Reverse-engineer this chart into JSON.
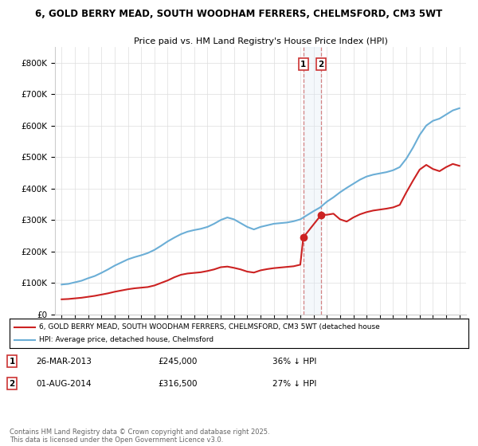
{
  "title1": "6, GOLD BERRY MEAD, SOUTH WOODHAM FERRERS, CHELMSFORD, CM3 5WT",
  "title2": "Price paid vs. HM Land Registry's House Price Index (HPI)",
  "legend_label1": "6, GOLD BERRY MEAD, SOUTH WOODHAM FERRERS, CHELMSFORD, CM3 5WT (detached house",
  "legend_label2": "HPI: Average price, detached house, Chelmsford",
  "annotation1_date": "26-MAR-2013",
  "annotation1_price": "£245,000",
  "annotation1_hpi": "36% ↓ HPI",
  "annotation2_date": "01-AUG-2014",
  "annotation2_price": "£316,500",
  "annotation2_hpi": "27% ↓ HPI",
  "footer": "Contains HM Land Registry data © Crown copyright and database right 2025.\nThis data is licensed under the Open Government Licence v3.0.",
  "hpi_color": "#6baed6",
  "price_color": "#cc2222",
  "annotation_fill_color": "#dce9f5",
  "ylim": [
    0,
    850000
  ],
  "yticks": [
    0,
    100000,
    200000,
    300000,
    400000,
    500000,
    600000,
    700000,
    800000
  ],
  "sale1_year": 2013.23,
  "sale1_price": 245000,
  "sale2_year": 2014.58,
  "sale2_price": 316500,
  "hpi_x": [
    1995,
    1995.5,
    1996,
    1996.5,
    1997,
    1997.5,
    1998,
    1998.5,
    1999,
    1999.5,
    2000,
    2000.5,
    2001,
    2001.5,
    2002,
    2002.5,
    2003,
    2003.5,
    2004,
    2004.5,
    2005,
    2005.5,
    2006,
    2006.5,
    2007,
    2007.5,
    2008,
    2008.5,
    2009,
    2009.5,
    2010,
    2010.5,
    2011,
    2011.5,
    2012,
    2012.5,
    2013,
    2013.5,
    2014,
    2014.5,
    2015,
    2015.5,
    2016,
    2016.5,
    2017,
    2017.5,
    2018,
    2018.5,
    2019,
    2019.5,
    2020,
    2020.5,
    2021,
    2021.5,
    2022,
    2022.5,
    2023,
    2023.5,
    2024,
    2024.5,
    2025
  ],
  "hpi_y": [
    95000,
    97000,
    102000,
    107000,
    115000,
    122000,
    132000,
    143000,
    155000,
    165000,
    175000,
    182000,
    188000,
    195000,
    205000,
    218000,
    232000,
    244000,
    255000,
    263000,
    268000,
    272000,
    278000,
    288000,
    300000,
    308000,
    302000,
    290000,
    278000,
    270000,
    278000,
    283000,
    288000,
    290000,
    292000,
    296000,
    302000,
    315000,
    328000,
    340000,
    358000,
    372000,
    388000,
    402000,
    415000,
    428000,
    438000,
    444000,
    448000,
    452000,
    458000,
    468000,
    495000,
    530000,
    570000,
    600000,
    615000,
    622000,
    635000,
    648000,
    655000
  ],
  "price_x": [
    1995,
    1995.5,
    1996,
    1996.5,
    1997,
    1997.5,
    1998,
    1998.5,
    1999,
    1999.5,
    2000,
    2000.5,
    2001,
    2001.5,
    2002,
    2002.5,
    2003,
    2003.5,
    2004,
    2004.5,
    2005,
    2005.5,
    2006,
    2006.5,
    2007,
    2007.5,
    2008,
    2008.5,
    2009,
    2009.5,
    2010,
    2010.5,
    2011,
    2011.5,
    2012,
    2012.5,
    2013,
    2013.23,
    2014.58,
    2015,
    2015.5,
    2016,
    2016.5,
    2017,
    2017.5,
    2018,
    2018.5,
    2019,
    2019.5,
    2020,
    2020.5,
    2021,
    2021.5,
    2022,
    2022.5,
    2023,
    2023.5,
    2024,
    2024.5,
    2025
  ],
  "price_y": [
    48000,
    49000,
    51000,
    53000,
    56000,
    59000,
    63000,
    67000,
    72000,
    76000,
    80000,
    83000,
    85000,
    87000,
    92000,
    100000,
    108000,
    118000,
    126000,
    130000,
    132000,
    134000,
    138000,
    143000,
    150000,
    152000,
    148000,
    143000,
    136000,
    133000,
    140000,
    144000,
    147000,
    149000,
    151000,
    153000,
    158000,
    245000,
    316500,
    316500,
    320000,
    302000,
    295000,
    308000,
    318000,
    325000,
    330000,
    333000,
    336000,
    340000,
    348000,
    388000,
    425000,
    460000,
    475000,
    462000,
    455000,
    468000,
    478000,
    472000
  ]
}
